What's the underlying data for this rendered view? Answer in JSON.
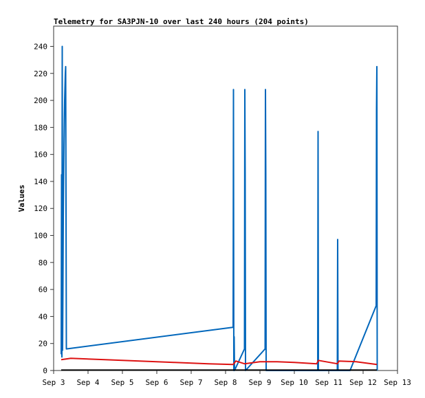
{
  "chart_data": {
    "type": "line",
    "title": "Telemetry for SA3PJN-10 over last 240 hours (204 points)",
    "xlabel": "",
    "ylabel": "Values",
    "xlim": [
      3.0,
      13.0
    ],
    "ylim": [
      0,
      255
    ],
    "x_ticks": [
      {
        "value": 3,
        "label": "Sep 3"
      },
      {
        "value": 4,
        "label": "Sep 4"
      },
      {
        "value": 5,
        "label": "Sep 5"
      },
      {
        "value": 6,
        "label": "Sep 6"
      },
      {
        "value": 7,
        "label": "Sep 7"
      },
      {
        "value": 8,
        "label": "Sep 8"
      },
      {
        "value": 9,
        "label": "Sep 9"
      },
      {
        "value": 10,
        "label": "Sep 10"
      },
      {
        "value": 11,
        "label": "Sep 11"
      },
      {
        "value": 12,
        "label": "Sep 12"
      },
      {
        "value": 13,
        "label": "Sep 13"
      }
    ],
    "y_ticks": [
      0,
      20,
      40,
      60,
      80,
      100,
      120,
      140,
      160,
      180,
      200,
      220,
      240
    ],
    "grid": false,
    "series": [
      {
        "color": "#0066bb",
        "points": [
          [
            3.22,
            12
          ],
          [
            3.23,
            145
          ],
          [
            3.24,
            10
          ],
          [
            3.25,
            240
          ],
          [
            3.26,
            15
          ],
          [
            3.27,
            60
          ],
          [
            3.28,
            110
          ],
          [
            3.29,
            140
          ],
          [
            3.3,
            165
          ],
          [
            3.31,
            185
          ],
          [
            3.32,
            200
          ],
          [
            3.33,
            210
          ],
          [
            3.34,
            220
          ],
          [
            3.35,
            225
          ],
          [
            3.37,
            16
          ],
          [
            8.22,
            32
          ],
          [
            8.23,
            208
          ],
          [
            8.24,
            0
          ],
          [
            8.25,
            25
          ],
          [
            8.26,
            0
          ],
          [
            8.55,
            16
          ],
          [
            8.56,
            208
          ],
          [
            8.57,
            145
          ],
          [
            8.58,
            0
          ],
          [
            9.15,
            16
          ],
          [
            9.16,
            208
          ],
          [
            9.17,
            145
          ],
          [
            9.18,
            0
          ],
          [
            10.68,
            0
          ],
          [
            10.69,
            177
          ],
          [
            10.7,
            0
          ],
          [
            11.25,
            0
          ],
          [
            11.26,
            97
          ],
          [
            11.27,
            0
          ],
          [
            11.62,
            0
          ],
          [
            12.38,
            48
          ],
          [
            12.39,
            193
          ],
          [
            12.4,
            225
          ],
          [
            12.41,
            0
          ]
        ]
      },
      {
        "color": "#dd1111",
        "points": [
          [
            3.22,
            8
          ],
          [
            3.5,
            9
          ],
          [
            4.5,
            8
          ],
          [
            5.5,
            7
          ],
          [
            6.5,
            6
          ],
          [
            7.5,
            5
          ],
          [
            8.22,
            4.5
          ],
          [
            8.3,
            7
          ],
          [
            8.55,
            5
          ],
          [
            9.0,
            6.5
          ],
          [
            9.5,
            6.5
          ],
          [
            10.0,
            6
          ],
          [
            10.65,
            5
          ],
          [
            10.7,
            7.5
          ],
          [
            11.25,
            5
          ],
          [
            11.3,
            7
          ],
          [
            11.8,
            6.5
          ],
          [
            12.4,
            4.5
          ]
        ]
      },
      {
        "color": "#000000",
        "points": [
          [
            3.22,
            0.3
          ],
          [
            12.4,
            0.3
          ]
        ]
      }
    ]
  }
}
